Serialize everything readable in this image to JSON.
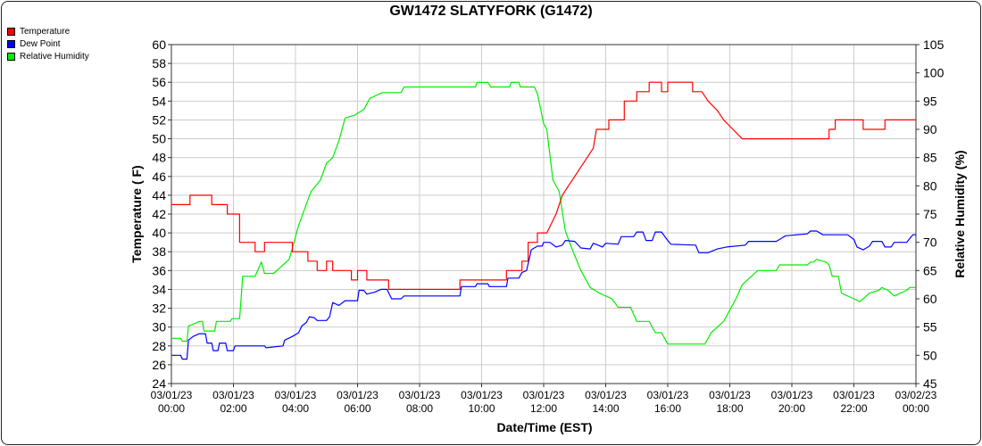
{
  "chart_data": {
    "type": "line",
    "title": "GW1472 SLATYFORK (G1472)",
    "xlabel": "Date/Time (EST)",
    "ylabel_left": "Temperature ( F)",
    "ylabel_right": "Relative Humidity (%)",
    "ylim_left": [
      24,
      60
    ],
    "ylim_right": [
      45,
      105
    ],
    "yticks_left": [
      "24",
      "26",
      "28",
      "30",
      "32",
      "34",
      "36",
      "38",
      "40",
      "42",
      "44",
      "46",
      "48",
      "50",
      "52",
      "54",
      "56",
      "58",
      "60"
    ],
    "yticks_right": [
      "45",
      "50",
      "55",
      "60",
      "65",
      "70",
      "75",
      "80",
      "85",
      "90",
      "95",
      "100",
      "105"
    ],
    "xlim_hours": [
      0,
      24
    ],
    "xticks": [
      {
        "date": "03/01/23",
        "time": "00:00"
      },
      {
        "date": "03/01/23",
        "time": "02:00"
      },
      {
        "date": "03/01/23",
        "time": "04:00"
      },
      {
        "date": "03/01/23",
        "time": "06:00"
      },
      {
        "date": "03/01/23",
        "time": "08:00"
      },
      {
        "date": "03/01/23",
        "time": "10:00"
      },
      {
        "date": "03/01/23",
        "time": "12:00"
      },
      {
        "date": "03/01/23",
        "time": "14:00"
      },
      {
        "date": "03/01/23",
        "time": "16:00"
      },
      {
        "date": "03/01/23",
        "time": "18:00"
      },
      {
        "date": "03/01/23",
        "time": "20:00"
      },
      {
        "date": "03/01/23",
        "time": "22:00"
      },
      {
        "date": "03/02/23",
        "time": "00:00"
      }
    ],
    "grid": true,
    "legend_position": "top-left",
    "series": [
      {
        "name": "Temperature",
        "axis": "left",
        "color": "#ff0000",
        "points": [
          [
            0,
            43
          ],
          [
            0.6,
            43
          ],
          [
            0.6,
            44
          ],
          [
            1.3,
            44
          ],
          [
            1.3,
            43
          ],
          [
            1.8,
            43
          ],
          [
            1.8,
            42
          ],
          [
            2.2,
            42
          ],
          [
            2.2,
            39
          ],
          [
            2.7,
            39
          ],
          [
            2.7,
            38
          ],
          [
            3.0,
            38
          ],
          [
            3.0,
            39
          ],
          [
            3.9,
            39
          ],
          [
            3.9,
            38
          ],
          [
            4.4,
            38
          ],
          [
            4.4,
            37
          ],
          [
            4.7,
            37
          ],
          [
            4.7,
            36
          ],
          [
            5.0,
            36
          ],
          [
            5.0,
            37
          ],
          [
            5.2,
            37
          ],
          [
            5.2,
            36
          ],
          [
            5.8,
            36
          ],
          [
            5.8,
            35
          ],
          [
            6.0,
            35
          ],
          [
            6.0,
            36
          ],
          [
            6.3,
            36
          ],
          [
            6.3,
            35
          ],
          [
            7.0,
            35
          ],
          [
            7.0,
            34
          ],
          [
            9.3,
            34
          ],
          [
            9.3,
            35
          ],
          [
            10.8,
            35
          ],
          [
            10.8,
            36
          ],
          [
            11.3,
            36
          ],
          [
            11.3,
            37
          ],
          [
            11.5,
            37
          ],
          [
            11.5,
            39
          ],
          [
            11.8,
            39
          ],
          [
            11.8,
            40
          ],
          [
            12.1,
            40
          ],
          [
            12.4,
            42
          ],
          [
            12.6,
            44
          ],
          [
            12.8,
            45
          ],
          [
            13.0,
            46
          ],
          [
            13.2,
            47
          ],
          [
            13.4,
            48
          ],
          [
            13.6,
            49
          ],
          [
            13.7,
            51
          ],
          [
            14.1,
            51
          ],
          [
            14.1,
            52
          ],
          [
            14.6,
            52
          ],
          [
            14.6,
            54
          ],
          [
            15.0,
            54
          ],
          [
            15.0,
            55
          ],
          [
            15.4,
            55
          ],
          [
            15.4,
            56
          ],
          [
            15.8,
            56
          ],
          [
            15.8,
            55
          ],
          [
            16.0,
            55
          ],
          [
            16.0,
            56
          ],
          [
            16.8,
            56
          ],
          [
            16.8,
            55
          ],
          [
            17.1,
            55
          ],
          [
            17.3,
            54
          ],
          [
            17.6,
            53
          ],
          [
            17.8,
            52
          ],
          [
            18.1,
            51
          ],
          [
            18.4,
            50
          ],
          [
            18.6,
            50
          ],
          [
            20.0,
            50
          ],
          [
            21.2,
            50
          ],
          [
            21.2,
            51
          ],
          [
            21.4,
            51
          ],
          [
            21.4,
            52
          ],
          [
            22.3,
            52
          ],
          [
            22.3,
            51
          ],
          [
            23.0,
            51
          ],
          [
            23.0,
            52
          ],
          [
            24,
            52
          ]
        ]
      },
      {
        "name": "Dew Point",
        "axis": "left",
        "color": "#0000ff",
        "points": [
          [
            0,
            27
          ],
          [
            0.3,
            27
          ],
          [
            0.35,
            26.6
          ],
          [
            0.5,
            26.6
          ],
          [
            0.55,
            28.6
          ],
          [
            0.7,
            29
          ],
          [
            0.9,
            29.3
          ],
          [
            1.1,
            29.3
          ],
          [
            1.15,
            28.3
          ],
          [
            1.3,
            28.3
          ],
          [
            1.35,
            27.5
          ],
          [
            1.5,
            27.5
          ],
          [
            1.55,
            28.3
          ],
          [
            1.75,
            28.3
          ],
          [
            1.8,
            27.5
          ],
          [
            2.0,
            27.5
          ],
          [
            2.05,
            28
          ],
          [
            3.0,
            28
          ],
          [
            3.05,
            27.8
          ],
          [
            3.6,
            28
          ],
          [
            3.65,
            28.6
          ],
          [
            3.9,
            29
          ],
          [
            4.1,
            29.4
          ],
          [
            4.2,
            30.1
          ],
          [
            4.35,
            30.5
          ],
          [
            4.45,
            31.1
          ],
          [
            4.6,
            31
          ],
          [
            4.7,
            30.7
          ],
          [
            5.0,
            30.7
          ],
          [
            5.1,
            31.1
          ],
          [
            5.2,
            32.6
          ],
          [
            5.4,
            32.3
          ],
          [
            5.6,
            32.8
          ],
          [
            6.0,
            32.8
          ],
          [
            6.05,
            33.9
          ],
          [
            6.2,
            33.9
          ],
          [
            6.3,
            33.5
          ],
          [
            6.55,
            33.7
          ],
          [
            6.75,
            34
          ],
          [
            6.95,
            34
          ],
          [
            7.1,
            33
          ],
          [
            7.4,
            33
          ],
          [
            7.5,
            33.3
          ],
          [
            9.3,
            33.3
          ],
          [
            9.35,
            34.3
          ],
          [
            9.8,
            34.3
          ],
          [
            9.85,
            34.6
          ],
          [
            10.2,
            34.6
          ],
          [
            10.25,
            34.3
          ],
          [
            10.8,
            34.3
          ],
          [
            10.85,
            35.2
          ],
          [
            11.2,
            35.2
          ],
          [
            11.3,
            35.8
          ],
          [
            11.45,
            36
          ],
          [
            11.6,
            38.2
          ],
          [
            11.8,
            38.6
          ],
          [
            11.95,
            38.6
          ],
          [
            12.0,
            39
          ],
          [
            12.2,
            39
          ],
          [
            12.4,
            38.5
          ],
          [
            12.6,
            38.7
          ],
          [
            12.7,
            39.2
          ],
          [
            13.0,
            39.1
          ],
          [
            13.2,
            38.4
          ],
          [
            13.5,
            38.3
          ],
          [
            13.6,
            38.9
          ],
          [
            13.9,
            38.5
          ],
          [
            14.0,
            38.9
          ],
          [
            14.4,
            38.8
          ],
          [
            14.5,
            39.6
          ],
          [
            14.9,
            39.6
          ],
          [
            15.0,
            40.1
          ],
          [
            15.2,
            40.1
          ],
          [
            15.3,
            39.2
          ],
          [
            15.5,
            39.2
          ],
          [
            15.6,
            40.1
          ],
          [
            15.8,
            40.1
          ],
          [
            16.0,
            39.2
          ],
          [
            16.1,
            38.8
          ],
          [
            16.9,
            38.7
          ],
          [
            17.0,
            37.9
          ],
          [
            17.3,
            37.9
          ],
          [
            17.6,
            38.3
          ],
          [
            17.9,
            38.5
          ],
          [
            18.5,
            38.7
          ],
          [
            18.6,
            39.1
          ],
          [
            19.5,
            39.1
          ],
          [
            19.7,
            39.5
          ],
          [
            19.8,
            39.7
          ],
          [
            20.5,
            39.9
          ],
          [
            20.6,
            40.2
          ],
          [
            20.8,
            40.2
          ],
          [
            21.0,
            39.8
          ],
          [
            21.8,
            39.8
          ],
          [
            22.0,
            39.3
          ],
          [
            22.1,
            38.5
          ],
          [
            22.3,
            38.2
          ],
          [
            22.5,
            38.6
          ],
          [
            22.6,
            39.1
          ],
          [
            22.9,
            39.1
          ],
          [
            23.0,
            38.5
          ],
          [
            23.2,
            38.5
          ],
          [
            23.3,
            39
          ],
          [
            23.7,
            39
          ],
          [
            23.8,
            39.4
          ],
          [
            23.9,
            39.8
          ],
          [
            24,
            39.8
          ]
        ]
      },
      {
        "name": "Relative Humidity",
        "axis": "right",
        "color": "#00ee00",
        "points": [
          [
            0,
            53
          ],
          [
            0.3,
            53
          ],
          [
            0.35,
            52.5
          ],
          [
            0.5,
            52.5
          ],
          [
            0.55,
            55.2
          ],
          [
            0.7,
            55.5
          ],
          [
            0.9,
            56
          ],
          [
            1.0,
            56
          ],
          [
            1.05,
            54.3
          ],
          [
            1.4,
            54.3
          ],
          [
            1.45,
            56
          ],
          [
            1.9,
            56
          ],
          [
            1.95,
            56.5
          ],
          [
            2.2,
            56.5
          ],
          [
            2.3,
            64
          ],
          [
            2.7,
            64
          ],
          [
            2.9,
            66.5
          ],
          [
            3.0,
            64.5
          ],
          [
            3.3,
            64.5
          ],
          [
            3.5,
            65.5
          ],
          [
            3.6,
            66
          ],
          [
            3.8,
            67
          ],
          [
            3.95,
            70
          ],
          [
            4.1,
            73
          ],
          [
            4.3,
            76
          ],
          [
            4.5,
            79
          ],
          [
            4.8,
            81
          ],
          [
            5.0,
            84
          ],
          [
            5.2,
            85
          ],
          [
            5.4,
            88
          ],
          [
            5.6,
            92
          ],
          [
            5.9,
            92.5
          ],
          [
            6.2,
            93.5
          ],
          [
            6.4,
            95.5
          ],
          [
            6.8,
            96.5
          ],
          [
            7.4,
            96.5
          ],
          [
            7.5,
            97.5
          ],
          [
            9.8,
            97.5
          ],
          [
            9.85,
            98.3
          ],
          [
            10.2,
            98.3
          ],
          [
            10.3,
            97.5
          ],
          [
            10.9,
            97.5
          ],
          [
            10.95,
            98.3
          ],
          [
            11.2,
            98.3
          ],
          [
            11.25,
            97.5
          ],
          [
            11.7,
            97.5
          ],
          [
            11.8,
            96.3
          ],
          [
            12.0,
            91
          ],
          [
            12.1,
            90
          ],
          [
            12.3,
            81
          ],
          [
            12.5,
            79
          ],
          [
            12.7,
            72
          ],
          [
            12.9,
            69
          ],
          [
            13.2,
            65
          ],
          [
            13.5,
            62
          ],
          [
            13.8,
            61
          ],
          [
            14.2,
            60
          ],
          [
            14.4,
            58.5
          ],
          [
            14.8,
            58.5
          ],
          [
            15.0,
            56
          ],
          [
            15.4,
            56
          ],
          [
            15.6,
            54
          ],
          [
            15.8,
            54
          ],
          [
            16.0,
            52
          ],
          [
            17.0,
            52
          ],
          [
            17.2,
            52
          ],
          [
            17.4,
            54
          ],
          [
            17.6,
            55
          ],
          [
            17.8,
            56
          ],
          [
            18.0,
            58
          ],
          [
            18.2,
            60
          ],
          [
            18.4,
            62.5
          ],
          [
            18.7,
            64
          ],
          [
            18.9,
            65
          ],
          [
            19.5,
            65
          ],
          [
            19.6,
            66
          ],
          [
            20.5,
            66
          ],
          [
            20.6,
            66.5
          ],
          [
            20.7,
            66.5
          ],
          [
            20.8,
            67
          ],
          [
            21.1,
            66.5
          ],
          [
            21.2,
            66
          ],
          [
            21.3,
            64
          ],
          [
            21.5,
            64
          ],
          [
            21.6,
            61
          ],
          [
            22.0,
            60
          ],
          [
            22.2,
            59.5
          ],
          [
            22.3,
            60
          ],
          [
            22.5,
            61
          ],
          [
            22.8,
            61.5
          ],
          [
            22.9,
            62
          ],
          [
            23.1,
            61.5
          ],
          [
            23.3,
            60.5
          ],
          [
            23.5,
            61
          ],
          [
            23.7,
            61.5
          ],
          [
            23.8,
            62
          ],
          [
            24,
            62
          ]
        ]
      }
    ]
  }
}
